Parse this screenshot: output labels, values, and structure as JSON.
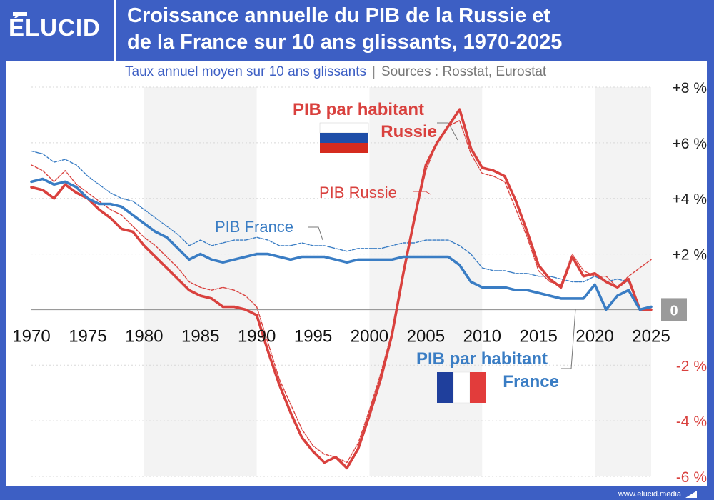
{
  "brand": {
    "logo_text": "ÉLUCID",
    "footer_url": "www.elucid.media"
  },
  "header": {
    "title_line1": "Croissance annuelle du PIB de la Russie et",
    "title_line2": "de la France sur 10 ans glissants, 1970-2025"
  },
  "subtitle": "Taux annuel moyen sur 10 ans glissants",
  "separator": "|",
  "sources": "Sources : Rosstat, Eurostat",
  "colors": {
    "russia": "#d9413e",
    "france": "#3a7dc4",
    "brand": "#3d5fc4",
    "band": "#f3f3f3"
  },
  "chart_data": {
    "type": "line",
    "xlim": [
      1970,
      2025
    ],
    "ylim": [
      -6,
      8
    ],
    "x_ticks": [
      1970,
      1975,
      1980,
      1985,
      1990,
      1995,
      2000,
      2005,
      2010,
      2015,
      2020,
      2025
    ],
    "x_tick_labels": [
      "1970",
      "1975",
      "1980",
      "1985",
      "1990",
      "1995",
      "2000",
      "2005",
      "2010",
      "2015",
      "2020",
      "2025"
    ],
    "y_ticks": [
      {
        "value": 8,
        "label": "+8 %"
      },
      {
        "value": 6,
        "label": "+6 %"
      },
      {
        "value": 4,
        "label": "+4 %"
      },
      {
        "value": 2,
        "label": "+2 %"
      },
      {
        "value": 0,
        "label": "0"
      },
      {
        "value": -2,
        "label": "-2 %"
      },
      {
        "value": -4,
        "label": "-4 %"
      },
      {
        "value": -6,
        "label": "-6 %"
      }
    ],
    "shaded_decades": [
      [
        1980,
        1990
      ],
      [
        2000,
        2010
      ],
      [
        2020,
        2025
      ]
    ],
    "series": [
      {
        "name": "PIB Russie",
        "style": "dashed",
        "color": "#d9413e",
        "x": [
          1970,
          1971,
          1972,
          1973,
          1974,
          1975,
          1976,
          1977,
          1978,
          1979,
          1980,
          1981,
          1982,
          1983,
          1984,
          1985,
          1986,
          1987,
          1988,
          1989,
          1990,
          1991,
          1992,
          1993,
          1994,
          1995,
          1996,
          1997,
          1998,
          1999,
          2000,
          2001,
          2002,
          2003,
          2004,
          2005,
          2006,
          2007,
          2008,
          2009,
          2010,
          2011,
          2012,
          2013,
          2014,
          2015,
          2016,
          2017,
          2018,
          2019,
          2020,
          2021,
          2022,
          2023,
          2024,
          2025
        ],
        "y": [
          5.2,
          5.0,
          4.6,
          5.0,
          4.5,
          4.2,
          3.9,
          3.6,
          3.4,
          3.0,
          2.6,
          2.3,
          1.9,
          1.5,
          1.0,
          0.8,
          0.7,
          0.8,
          0.7,
          0.5,
          0.1,
          -1.2,
          -2.5,
          -3.4,
          -4.3,
          -4.9,
          -5.2,
          -5.3,
          -5.5,
          -4.8,
          -3.6,
          -2.3,
          -0.8,
          1.2,
          3.2,
          5.0,
          6.0,
          6.6,
          6.8,
          5.6,
          4.9,
          4.8,
          4.6,
          3.6,
          2.6,
          1.4,
          1.0,
          0.9,
          2.0,
          1.4,
          1.2,
          1.2,
          0.8,
          1.2,
          1.5,
          1.8
        ]
      },
      {
        "name": "PIB France",
        "style": "dashed",
        "color": "#3a7dc4",
        "x": [
          1970,
          1971,
          1972,
          1973,
          1974,
          1975,
          1976,
          1977,
          1978,
          1979,
          1980,
          1981,
          1982,
          1983,
          1984,
          1985,
          1986,
          1987,
          1988,
          1989,
          1990,
          1991,
          1992,
          1993,
          1994,
          1995,
          1996,
          1997,
          1998,
          1999,
          2000,
          2001,
          2002,
          2003,
          2004,
          2005,
          2006,
          2007,
          2008,
          2009,
          2010,
          2011,
          2012,
          2013,
          2014,
          2015,
          2016,
          2017,
          2018,
          2019,
          2020,
          2021,
          2022,
          2023,
          2024,
          2025
        ],
        "y": [
          5.7,
          5.6,
          5.3,
          5.4,
          5.2,
          4.8,
          4.5,
          4.2,
          4.0,
          3.9,
          3.6,
          3.3,
          3.0,
          2.7,
          2.3,
          2.5,
          2.3,
          2.4,
          2.5,
          2.5,
          2.6,
          2.5,
          2.3,
          2.3,
          2.4,
          2.3,
          2.3,
          2.2,
          2.1,
          2.2,
          2.2,
          2.2,
          2.3,
          2.4,
          2.4,
          2.5,
          2.5,
          2.5,
          2.3,
          2.0,
          1.5,
          1.4,
          1.4,
          1.3,
          1.3,
          1.2,
          1.2,
          1.1,
          1.0,
          1.0,
          1.2,
          1.0,
          1.1,
          1.0,
          0.0,
          0.0
        ]
      },
      {
        "name": "PIB par habitant Russie",
        "style": "solid",
        "color": "#d9413e",
        "x": [
          1970,
          1971,
          1972,
          1973,
          1974,
          1975,
          1976,
          1977,
          1978,
          1979,
          1980,
          1981,
          1982,
          1983,
          1984,
          1985,
          1986,
          1987,
          1988,
          1989,
          1990,
          1991,
          1992,
          1993,
          1994,
          1995,
          1996,
          1997,
          1998,
          1999,
          2000,
          2001,
          2002,
          2003,
          2004,
          2005,
          2006,
          2007,
          2008,
          2009,
          2010,
          2011,
          2012,
          2013,
          2014,
          2015,
          2016,
          2017,
          2018,
          2019,
          2020,
          2021,
          2022,
          2023,
          2024,
          2025
        ],
        "y": [
          4.4,
          4.3,
          4.0,
          4.5,
          4.2,
          4.0,
          3.6,
          3.3,
          2.9,
          2.8,
          2.3,
          1.9,
          1.5,
          1.1,
          0.7,
          0.5,
          0.4,
          0.1,
          0.1,
          0.0,
          -0.2,
          -1.5,
          -2.7,
          -3.7,
          -4.6,
          -5.1,
          -5.5,
          -5.3,
          -5.7,
          -5.0,
          -3.8,
          -2.5,
          -0.9,
          1.3,
          3.3,
          5.2,
          6.0,
          6.6,
          7.2,
          5.8,
          5.1,
          5.0,
          4.8,
          3.9,
          2.8,
          1.6,
          1.1,
          0.8,
          1.9,
          1.2,
          1.3,
          1.0,
          0.8,
          1.1,
          0.0,
          0.0
        ]
      },
      {
        "name": "PIB par habitant France",
        "style": "solid",
        "color": "#3a7dc4",
        "x": [
          1970,
          1971,
          1972,
          1973,
          1974,
          1975,
          1976,
          1977,
          1978,
          1979,
          1980,
          1981,
          1982,
          1983,
          1984,
          1985,
          1986,
          1987,
          1988,
          1989,
          1990,
          1991,
          1992,
          1993,
          1994,
          1995,
          1996,
          1997,
          1998,
          1999,
          2000,
          2001,
          2002,
          2003,
          2004,
          2005,
          2006,
          2007,
          2008,
          2009,
          2010,
          2011,
          2012,
          2013,
          2014,
          2015,
          2016,
          2017,
          2018,
          2019,
          2020,
          2021,
          2022,
          2023,
          2024,
          2025
        ],
        "y": [
          4.6,
          4.7,
          4.5,
          4.6,
          4.4,
          4.0,
          3.8,
          3.8,
          3.7,
          3.4,
          3.1,
          2.8,
          2.6,
          2.2,
          1.8,
          2.0,
          1.8,
          1.7,
          1.8,
          1.9,
          2.0,
          2.0,
          1.9,
          1.8,
          1.9,
          1.9,
          1.9,
          1.8,
          1.7,
          1.8,
          1.8,
          1.8,
          1.8,
          1.9,
          1.9,
          1.9,
          1.9,
          1.9,
          1.6,
          1.0,
          0.8,
          0.8,
          0.8,
          0.7,
          0.7,
          0.6,
          0.5,
          0.4,
          0.4,
          0.4,
          0.9,
          0.0,
          0.5,
          0.7,
          0.0,
          0.1
        ]
      }
    ],
    "annotations": {
      "russia_per_capita_line1": "PIB par habitant",
      "russia_per_capita_line2": "Russie",
      "russia_gdp": "PIB Russie",
      "france_gdp": "PIB France",
      "france_per_capita_line1": "PIB par habitant",
      "france_per_capita_line2": "France"
    },
    "grid": true,
    "legend": "inline labels"
  }
}
